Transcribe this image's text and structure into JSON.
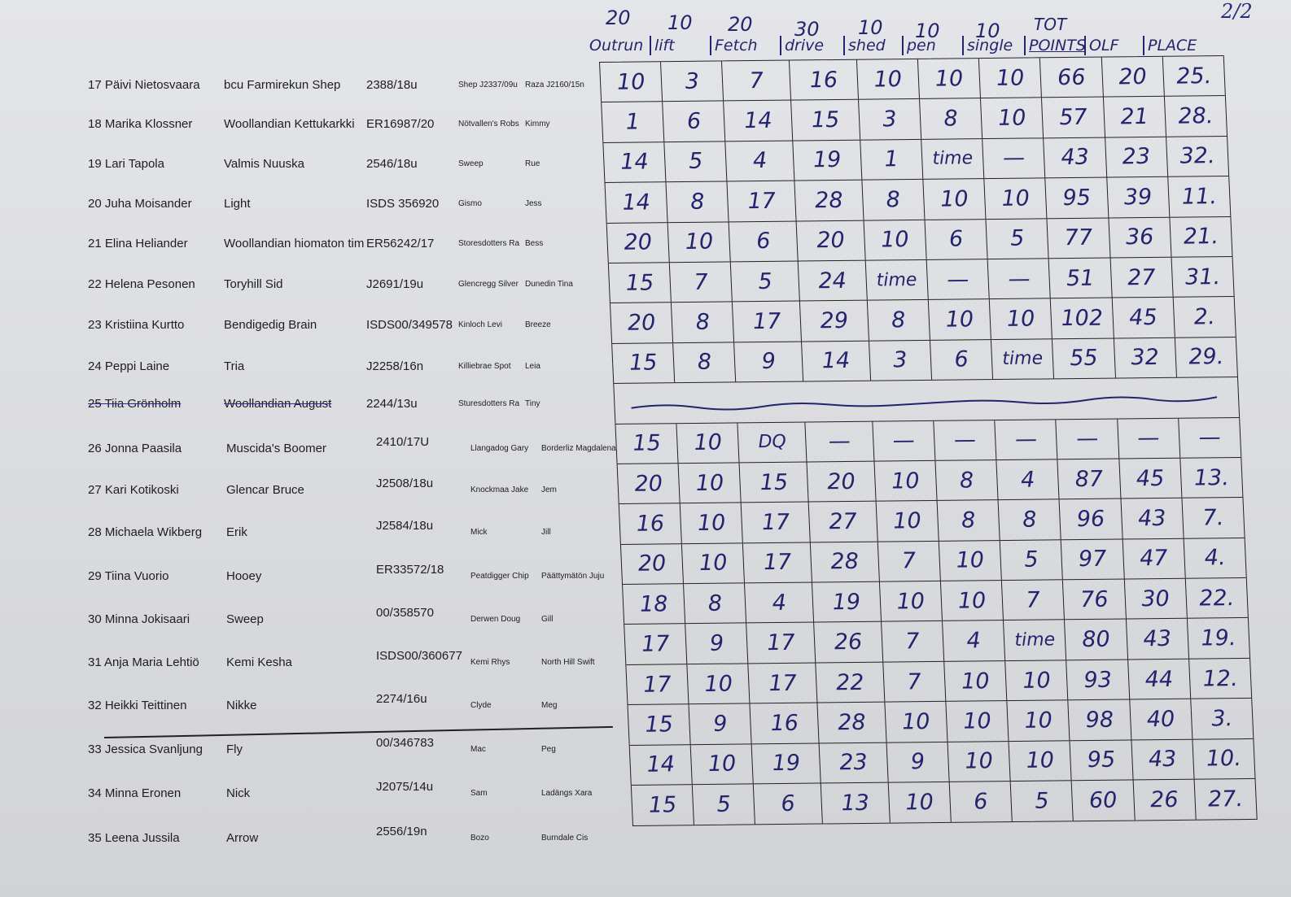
{
  "page_number": "2/2",
  "score_header": {
    "max_points": [
      "20",
      "10",
      "20",
      "30",
      "10",
      "10",
      "10",
      "TOT"
    ],
    "columns": [
      "Outrun",
      "lift",
      "Fetch",
      "drive",
      "shed",
      "pen",
      "single",
      "POINTS",
      "OLF",
      "PLACE"
    ]
  },
  "competitors": [
    {
      "no_name": "17 Päivi Nietosvaara",
      "dog": "bcu Farmirekun Shep",
      "reg": "2388/18u",
      "sire": "Shep J2337/09u",
      "dam": "Raza J2160/15n"
    },
    {
      "no_name": "18 Marika Klossner",
      "dog": "Woollandian Kettukarkki",
      "reg": "ER16987/20",
      "sire": "Nötvallen's Robs",
      "dam": "Kimmy"
    },
    {
      "no_name": "19 Lari Tapola",
      "dog": "Valmis Nuuska",
      "reg": "2546/18u",
      "sire": "Sweep",
      "dam": "Rue"
    },
    {
      "no_name": "20 Juha Moisander",
      "dog": "Light",
      "reg": "ISDS 356920",
      "sire": "Gismo",
      "dam": "Jess"
    },
    {
      "no_name": "21 Elina Heliander",
      "dog": "Woollandian hiomaton tim",
      "reg": "ER56242/17",
      "sire": "Storesdotters Ra",
      "dam": "Bess"
    },
    {
      "no_name": "22 Helena Pesonen",
      "dog": "Toryhill Sid",
      "reg": "J2691/19u",
      "sire": "Glencregg Silver",
      "dam": "Dunedin Tina"
    },
    {
      "no_name": "23 Kristiina Kurtto",
      "dog": "Bendigedig Brain",
      "reg": "ISDS00/349578",
      "sire": "Kinloch Levi",
      "dam": "Breeze"
    },
    {
      "no_name": "24 Peppi Laine",
      "dog": "Tria",
      "reg": "J2258/16n",
      "sire": "Killiebrae Spot",
      "dam": "Leia"
    },
    {
      "no_name": "25 Tiia Grönholm",
      "dog": "Woollandian August",
      "reg": "2244/13u",
      "sire": "Sturesdotters Ra",
      "dam": "Tiny",
      "struck": true
    },
    {
      "no_name": "26 Jonna Paasila",
      "dog": "Muscida's Boomer",
      "reg": "2410/17U",
      "sire": "Llangadog Gary",
      "dam": "Borderliz Magdalena"
    },
    {
      "no_name": "27 Kari Kotikoski",
      "dog": "Glencar Bruce",
      "reg": "J2508/18u",
      "sire": "Knockmaa Jake",
      "dam": "Jem"
    },
    {
      "no_name": "28 Michaela Wikberg",
      "dog": "Erik",
      "reg": "J2584/18u",
      "sire": "Mick",
      "dam": "Jill"
    },
    {
      "no_name": "29 Tiina Vuorio",
      "dog": "Hooey",
      "reg": "ER33572/18",
      "sire": "Peatdigger Chip",
      "dam": "Päättymätön Juju"
    },
    {
      "no_name": "30 Minna Jokisaari",
      "dog": "Sweep",
      "reg": "00/358570",
      "sire": "Derwen Doug",
      "dam": "Gill"
    },
    {
      "no_name": "31 Anja Maria Lehtiö",
      "dog": "Kemi Kesha",
      "reg": "ISDS00/360677",
      "sire": "Kemi Rhys",
      "dam": "North Hill Swift"
    },
    {
      "no_name": "32 Heikki Teittinen",
      "dog": "Nikke",
      "reg": "2274/16u",
      "sire": "Clyde",
      "dam": "Meg"
    },
    {
      "no_name": "33 Jessica Svanljung",
      "dog": "Fly",
      "reg": "00/346783",
      "sire": "Mac",
      "dam": "Peg"
    },
    {
      "no_name": "34 Minna Eronen",
      "dog": "Nick",
      "reg": "J2075/14u",
      "sire": "Sam",
      "dam": "Ladängs Xara"
    },
    {
      "no_name": "35 Leena Jussila",
      "dog": "Arrow",
      "reg": "2556/19n",
      "sire": "Bozo",
      "dam": "Burndale Cis"
    }
  ],
  "score_rows": [
    [
      "10",
      "3",
      "7",
      "16",
      "10",
      "10",
      "10",
      "66",
      "20",
      "25."
    ],
    [
      "1",
      "6",
      "14",
      "15",
      "3",
      "8",
      "10",
      "57",
      "21",
      "28."
    ],
    [
      "14",
      "5",
      "4",
      "19",
      "1",
      "time",
      "—",
      "43",
      "23",
      "32."
    ],
    [
      "14",
      "8",
      "17",
      "28",
      "8",
      "10",
      "10",
      "95",
      "39",
      "11."
    ],
    [
      "20",
      "10",
      "6",
      "20",
      "10",
      "6",
      "5",
      "77",
      "36",
      "21."
    ],
    [
      "15",
      "7",
      "5",
      "24",
      "time",
      "—",
      "—",
      "51",
      "27",
      "31."
    ],
    [
      "20",
      "8",
      "17",
      "29",
      "8",
      "10",
      "10",
      "102",
      "45",
      "2."
    ],
    [
      "15",
      "8",
      "9",
      "14",
      "3",
      "6",
      "time",
      "55",
      "32",
      "29."
    ],
    null,
    [
      "15",
      "10",
      "DQ",
      "—",
      "—",
      "—",
      "—",
      "—",
      "—",
      "—"
    ],
    [
      "20",
      "10",
      "15",
      "20",
      "10",
      "8",
      "4",
      "87",
      "45",
      "13."
    ],
    [
      "16",
      "10",
      "17",
      "27",
      "10",
      "8",
      "8",
      "96",
      "43",
      "7."
    ],
    [
      "20",
      "10",
      "17",
      "28",
      "7",
      "10",
      "5",
      "97",
      "47",
      "4."
    ],
    [
      "18",
      "8",
      "4",
      "19",
      "10",
      "10",
      "7",
      "76",
      "30",
      "22."
    ],
    [
      "17",
      "9",
      "17",
      "26",
      "7",
      "4",
      "time",
      "80",
      "43",
      "19."
    ],
    [
      "17",
      "10",
      "17",
      "22",
      "7",
      "10",
      "10",
      "93",
      "44",
      "12."
    ],
    [
      "15",
      "9",
      "16",
      "28",
      "10",
      "10",
      "10",
      "98",
      "40",
      "3."
    ],
    [
      "14",
      "10",
      "19",
      "23",
      "9",
      "10",
      "10",
      "95",
      "43",
      "10."
    ],
    [
      "15",
      "5",
      "6",
      "13",
      "10",
      "6",
      "5",
      "60",
      "26",
      "27."
    ]
  ],
  "ink_color": "#23236e"
}
